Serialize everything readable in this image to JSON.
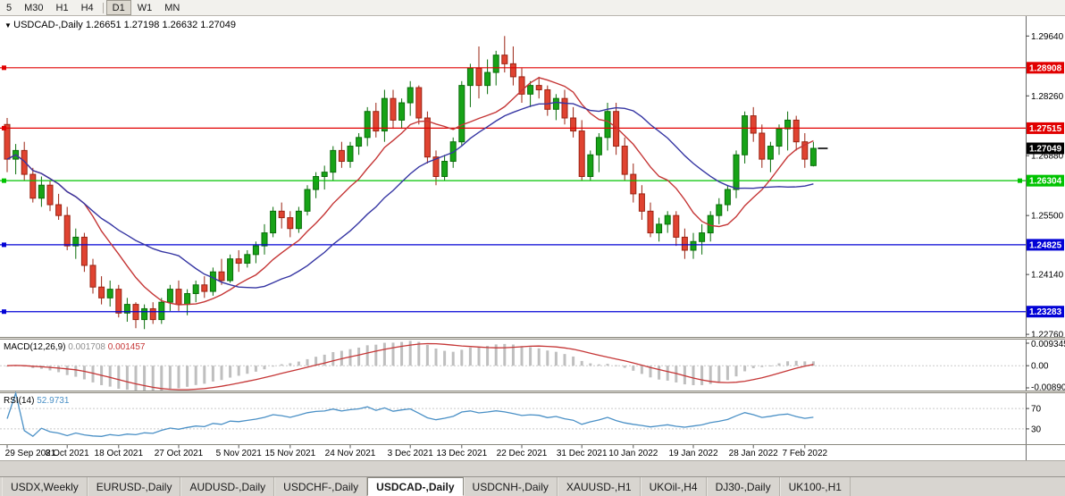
{
  "icons": {
    "collapse_arrow": "▼"
  },
  "toolbar": {
    "timeframes": [
      {
        "label": "5",
        "active": false,
        "sep_before": false
      },
      {
        "label": "M30",
        "active": false,
        "sep_before": false
      },
      {
        "label": "H1",
        "active": false,
        "sep_before": false
      },
      {
        "label": "H4",
        "active": false,
        "sep_before": false
      },
      {
        "label": "D1",
        "active": true,
        "sep_before": true
      },
      {
        "label": "W1",
        "active": false,
        "sep_before": false
      },
      {
        "label": "MN",
        "active": false,
        "sep_before": false
      }
    ]
  },
  "quote_line": {
    "symbol_label": "USDCAD-,Daily",
    "open": "1.26651",
    "high": "1.27198",
    "low": "1.26632",
    "close": "1.27049"
  },
  "colors": {
    "background": "#ffffff",
    "bull": "#17a317",
    "bull_border": "#0a6d0a",
    "bear": "#e04331",
    "bear_border": "#9a2312",
    "macd_hist": "#bfbfbf",
    "macd_signal": "#c53636",
    "rsi_line": "#4a90c6",
    "level_line": "#c9c9c9",
    "panel_border": "#8a887f",
    "axis_text": "#000000",
    "bid_tag": "#000000"
  },
  "chart_data": {
    "type": "candlestick",
    "symbol": "USDCAD",
    "timeframe": "Daily",
    "price_range": {
      "max": 1.301,
      "min": 1.227
    },
    "price_axis_labels": [
      {
        "label": "1.29640",
        "price": 1.2964
      },
      {
        "label": "1.28260",
        "price": 1.2826
      },
      {
        "label": "1.26880",
        "price": 1.2688
      },
      {
        "label": "1.25500",
        "price": 1.255
      },
      {
        "label": "1.24140",
        "price": 1.2414
      },
      {
        "label": "1.22760",
        "price": 1.2276
      }
    ],
    "hlines": [
      {
        "price": 1.28908,
        "label": "1.28908",
        "color": "#e10000",
        "handles": [
          "left"
        ]
      },
      {
        "price": 1.27515,
        "label": "1.27515",
        "color": "#e10000",
        "handles": [
          "left"
        ]
      },
      {
        "price": 1.26304,
        "label": "1.26304",
        "color": "#00c300",
        "handles": [
          "left",
          "right"
        ]
      },
      {
        "price": 1.24825,
        "label": "1.24825",
        "color": "#0202d6",
        "handles": [
          "left"
        ]
      },
      {
        "price": 1.23283,
        "label": "1.23283",
        "color": "#0202d6",
        "handles": [
          "left"
        ]
      }
    ],
    "bid": {
      "price": 1.27049,
      "label": "1.27049"
    },
    "moving_averages": [
      {
        "type": "sma",
        "period": 10,
        "color": "#c53636"
      },
      {
        "type": "sma",
        "period": 21,
        "color": "#3636a3"
      }
    ],
    "x_ticks": [
      {
        "index": 0,
        "label": "29 Sep 2021"
      },
      {
        "index": 7,
        "label": "8 Oct 2021"
      },
      {
        "index": 13,
        "label": "18 Oct 2021"
      },
      {
        "index": 20,
        "label": "27 Oct 2021"
      },
      {
        "index": 27,
        "label": "5 Nov 2021"
      },
      {
        "index": 33,
        "label": "15 Nov 2021"
      },
      {
        "index": 40,
        "label": "24 Nov 2021"
      },
      {
        "index": 47,
        "label": "3 Dec 2021"
      },
      {
        "index": 53,
        "label": "13 Dec 2021"
      },
      {
        "index": 60,
        "label": "22 Dec 2021"
      },
      {
        "index": 67,
        "label": "31 Dec 2021"
      },
      {
        "index": 73,
        "label": "10 Jan 2022"
      },
      {
        "index": 80,
        "label": "19 Jan 2022"
      },
      {
        "index": 87,
        "label": "28 Jan 2022"
      },
      {
        "index": 93,
        "label": "7 Feb 2022"
      }
    ],
    "candles": [
      [
        1.276,
        1.2775,
        1.265,
        1.268
      ],
      [
        1.268,
        1.2715,
        1.2645,
        1.27
      ],
      [
        1.27,
        1.272,
        1.263,
        1.2645
      ],
      [
        1.2645,
        1.266,
        1.258,
        1.259
      ],
      [
        1.259,
        1.264,
        1.257,
        1.262
      ],
      [
        1.262,
        1.263,
        1.256,
        1.2575
      ],
      [
        1.2575,
        1.26,
        1.254,
        1.255
      ],
      [
        1.255,
        1.257,
        1.247,
        1.248
      ],
      [
        1.248,
        1.252,
        1.245,
        1.25
      ],
      [
        1.25,
        1.251,
        1.242,
        1.2435
      ],
      [
        1.2435,
        1.245,
        1.237,
        1.2385
      ],
      [
        1.2385,
        1.241,
        1.2345,
        1.236
      ],
      [
        1.236,
        1.24,
        1.234,
        1.238
      ],
      [
        1.238,
        1.239,
        1.2315,
        1.2325
      ],
      [
        1.2325,
        1.236,
        1.2305,
        1.2345
      ],
      [
        1.2345,
        1.235,
        1.229,
        1.231
      ],
      [
        1.231,
        1.2345,
        1.2288,
        1.2335
      ],
      [
        1.2335,
        1.235,
        1.23,
        1.231
      ],
      [
        1.231,
        1.236,
        1.23,
        1.235
      ],
      [
        1.235,
        1.239,
        1.233,
        1.238
      ],
      [
        1.238,
        1.24,
        1.233,
        1.2345
      ],
      [
        1.2345,
        1.238,
        1.232,
        1.237
      ],
      [
        1.237,
        1.24,
        1.235,
        1.239
      ],
      [
        1.239,
        1.241,
        1.236,
        1.2375
      ],
      [
        1.2375,
        1.243,
        1.2365,
        1.242
      ],
      [
        1.242,
        1.245,
        1.239,
        1.24
      ],
      [
        1.24,
        1.246,
        1.2395,
        1.245
      ],
      [
        1.245,
        1.247,
        1.242,
        1.244
      ],
      [
        1.244,
        1.247,
        1.243,
        1.246
      ],
      [
        1.246,
        1.249,
        1.244,
        1.248
      ],
      [
        1.248,
        1.253,
        1.246,
        1.251
      ],
      [
        1.251,
        1.257,
        1.25,
        1.256
      ],
      [
        1.256,
        1.258,
        1.252,
        1.2545
      ],
      [
        1.2545,
        1.256,
        1.25,
        1.252
      ],
      [
        1.252,
        1.257,
        1.251,
        1.256
      ],
      [
        1.256,
        1.262,
        1.255,
        1.261
      ],
      [
        1.261,
        1.265,
        1.259,
        1.264
      ],
      [
        1.264,
        1.2665,
        1.261,
        1.265
      ],
      [
        1.265,
        1.271,
        1.263,
        1.27
      ],
      [
        1.27,
        1.272,
        1.266,
        1.2675
      ],
      [
        1.2675,
        1.272,
        1.266,
        1.271
      ],
      [
        1.271,
        1.274,
        1.269,
        1.273
      ],
      [
        1.273,
        1.28,
        1.271,
        1.279
      ],
      [
        1.279,
        1.281,
        1.273,
        1.2745
      ],
      [
        1.2745,
        1.284,
        1.272,
        1.282
      ],
      [
        1.282,
        1.284,
        1.275,
        1.277
      ],
      [
        1.277,
        1.282,
        1.275,
        1.281
      ],
      [
        1.281,
        1.286,
        1.278,
        1.2845
      ],
      [
        1.2845,
        1.285,
        1.276,
        1.2775
      ],
      [
        1.2775,
        1.279,
        1.267,
        1.2685
      ],
      [
        1.2685,
        1.27,
        1.262,
        1.264
      ],
      [
        1.264,
        1.269,
        1.263,
        1.2675
      ],
      [
        1.2675,
        1.273,
        1.266,
        1.272
      ],
      [
        1.272,
        1.286,
        1.271,
        1.285
      ],
      [
        1.285,
        1.29,
        1.28,
        1.289
      ],
      [
        1.289,
        1.294,
        1.282,
        1.285
      ],
      [
        1.285,
        1.291,
        1.283,
        1.288
      ],
      [
        1.288,
        1.293,
        1.285,
        1.292
      ],
      [
        1.292,
        1.2964,
        1.288,
        1.29
      ],
      [
        1.29,
        1.294,
        1.285,
        1.287
      ],
      [
        1.287,
        1.289,
        1.281,
        1.283
      ],
      [
        1.283,
        1.286,
        1.28,
        1.285
      ],
      [
        1.285,
        1.287,
        1.282,
        1.284
      ],
      [
        1.284,
        1.285,
        1.278,
        1.2795
      ],
      [
        1.2795,
        1.283,
        1.277,
        1.282
      ],
      [
        1.282,
        1.284,
        1.276,
        1.2775
      ],
      [
        1.2775,
        1.28,
        1.273,
        1.2745
      ],
      [
        1.2745,
        1.277,
        1.263,
        1.264
      ],
      [
        1.264,
        1.27,
        1.263,
        1.269
      ],
      [
        1.269,
        1.274,
        1.265,
        1.273
      ],
      [
        1.273,
        1.281,
        1.27,
        1.279
      ],
      [
        1.279,
        1.281,
        1.269,
        1.271
      ],
      [
        1.271,
        1.273,
        1.263,
        1.2645
      ],
      [
        1.2645,
        1.267,
        1.258,
        1.26
      ],
      [
        1.26,
        1.262,
        1.254,
        1.256
      ],
      [
        1.256,
        1.258,
        1.25,
        1.251
      ],
      [
        1.251,
        1.2545,
        1.249,
        1.253
      ],
      [
        1.253,
        1.256,
        1.251,
        1.255
      ],
      [
        1.255,
        1.256,
        1.248,
        1.25
      ],
      [
        1.25,
        1.252,
        1.245,
        1.247
      ],
      [
        1.247,
        1.251,
        1.245,
        1.249
      ],
      [
        1.249,
        1.253,
        1.246,
        1.251
      ],
      [
        1.251,
        1.256,
        1.249,
        1.255
      ],
      [
        1.255,
        1.259,
        1.253,
        1.2575
      ],
      [
        1.2575,
        1.262,
        1.256,
        1.261
      ],
      [
        1.261,
        1.27,
        1.259,
        1.269
      ],
      [
        1.269,
        1.279,
        1.267,
        1.278
      ],
      [
        1.278,
        1.28,
        1.272,
        1.274
      ],
      [
        1.274,
        1.276,
        1.266,
        1.268
      ],
      [
        1.268,
        1.272,
        1.265,
        1.271
      ],
      [
        1.271,
        1.276,
        1.269,
        1.275
      ],
      [
        1.275,
        1.279,
        1.27,
        1.277
      ],
      [
        1.277,
        1.278,
        1.27,
        1.272
      ],
      [
        1.272,
        1.274,
        1.266,
        1.268
      ],
      [
        1.26651,
        1.27198,
        1.26632,
        1.27049
      ]
    ],
    "indicators": {
      "macd": {
        "label": "MACD(12,26,9)",
        "value_main": "0.001708",
        "value_signal": "0.001457",
        "fast": 12,
        "slow": 26,
        "signal": 9,
        "axis": {
          "max": 0.009345,
          "min": -0.0089,
          "labels": [
            "0.009345",
            "0.00",
            "-0.00890"
          ]
        }
      },
      "rsi": {
        "label": "RSI(14)",
        "value": "52.9731",
        "period": 14,
        "levels": [
          70,
          30
        ]
      }
    }
  },
  "tabs": [
    {
      "label": "USDX,Weekly",
      "active": false
    },
    {
      "label": "EURUSD-,Daily",
      "active": false
    },
    {
      "label": "AUDUSD-,Daily",
      "active": false
    },
    {
      "label": "USDCHF-,Daily",
      "active": false
    },
    {
      "label": "USDCAD-,Daily",
      "active": true
    },
    {
      "label": "USDCNH-,Daily",
      "active": false
    },
    {
      "label": "XAUUSD-,H1",
      "active": false
    },
    {
      "label": "UKOil-,H4",
      "active": false
    },
    {
      "label": "DJ30-,Daily",
      "active": false
    },
    {
      "label": "UK100-,H1",
      "active": false
    }
  ]
}
